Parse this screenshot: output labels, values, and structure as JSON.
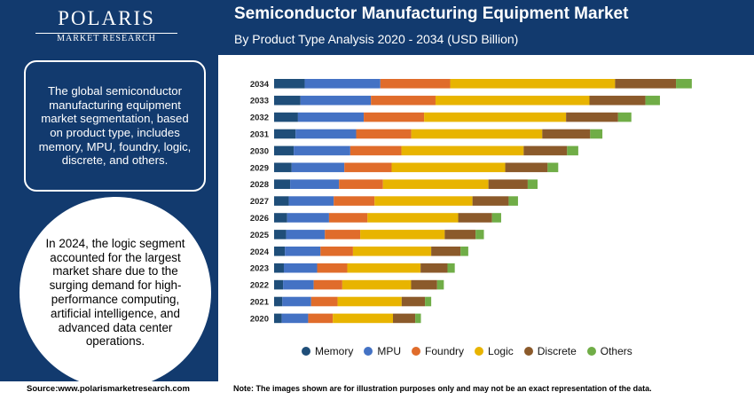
{
  "logo": {
    "name": "POLARIS",
    "sub": "MARKET RESEARCH"
  },
  "header": {
    "title": "Semiconductor Manufacturing Equipment Market",
    "subtitle": "By Product Type Analysis 2020 - 2034 (USD Billion)"
  },
  "callout": {
    "text": "The global semiconductor manufacturing equipment market segmentation, based on product type, includes memory, MPU, foundry, logic, discrete, and others."
  },
  "highlight": {
    "text": "In 2024, the logic segment accounted for the largest market share due to the surging demand for high-performance computing, artificial intelligence, and advanced data center operations."
  },
  "footer": {
    "source": "Source:www.polarismarketresearch.com",
    "note": "Note: The images shown are for illustration purposes only and may not be an exact representation of the data."
  },
  "colors": {
    "panel": "#123a6e"
  },
  "chart_data": {
    "type": "bar",
    "orientation": "horizontal",
    "stacked": true,
    "categories": [
      "2034",
      "2033",
      "2032",
      "2031",
      "2030",
      "2029",
      "2028",
      "2027",
      "2026",
      "2025",
      "2024",
      "2023",
      "2022",
      "2021",
      "2020"
    ],
    "series": [
      {
        "name": "Memory",
        "color": "#1f4e79",
        "values": [
          38.4,
          33.1,
          29.9,
          26.9,
          24.6,
          22.0,
          20.1,
          18.4,
          16.4,
          15.1,
          13.5,
          12.2,
          11.2,
          10.3,
          9.6
        ]
      },
      {
        "name": "MPU",
        "color": "#4472c4",
        "values": [
          94.7,
          88.2,
          82.4,
          75.9,
          70.8,
          66.0,
          61.2,
          56.3,
          52.4,
          48.5,
          44.6,
          41.7,
          38.4,
          36.1,
          33.1
        ]
      },
      {
        "name": "Foundry",
        "color": "#e06c2b",
        "values": [
          87.5,
          80.9,
          75.6,
          69.0,
          64.1,
          59.2,
          55.0,
          51.1,
          48.2,
          44.3,
          40.7,
          37.8,
          35.8,
          33.1,
          30.8
        ]
      },
      {
        "name": "Logic",
        "color": "#e8b400",
        "values": [
          206.5,
          192.8,
          177.8,
          164.1,
          153.1,
          142.3,
          132.2,
          122.7,
          113.6,
          105.8,
          98.0,
          91.8,
          86.2,
          80.3,
          75.4
        ]
      },
      {
        "name": "Discrete",
        "color": "#8b5a2b",
        "values": [
          76.3,
          70.1,
          65.2,
          60.0,
          54.4,
          53.1,
          49.2,
          45.3,
          42.4,
          38.7,
          36.7,
          33.7,
          32.6,
          29.2,
          27.9
        ]
      },
      {
        "name": "Others",
        "color": "#70ad47",
        "values": [
          19.8,
          18.2,
          16.6,
          15.3,
          14.0,
          13.3,
          12.3,
          11.7,
          11.4,
          10.4,
          9.7,
          9.1,
          8.4,
          7.8,
          7.1
        ]
      }
    ]
  }
}
